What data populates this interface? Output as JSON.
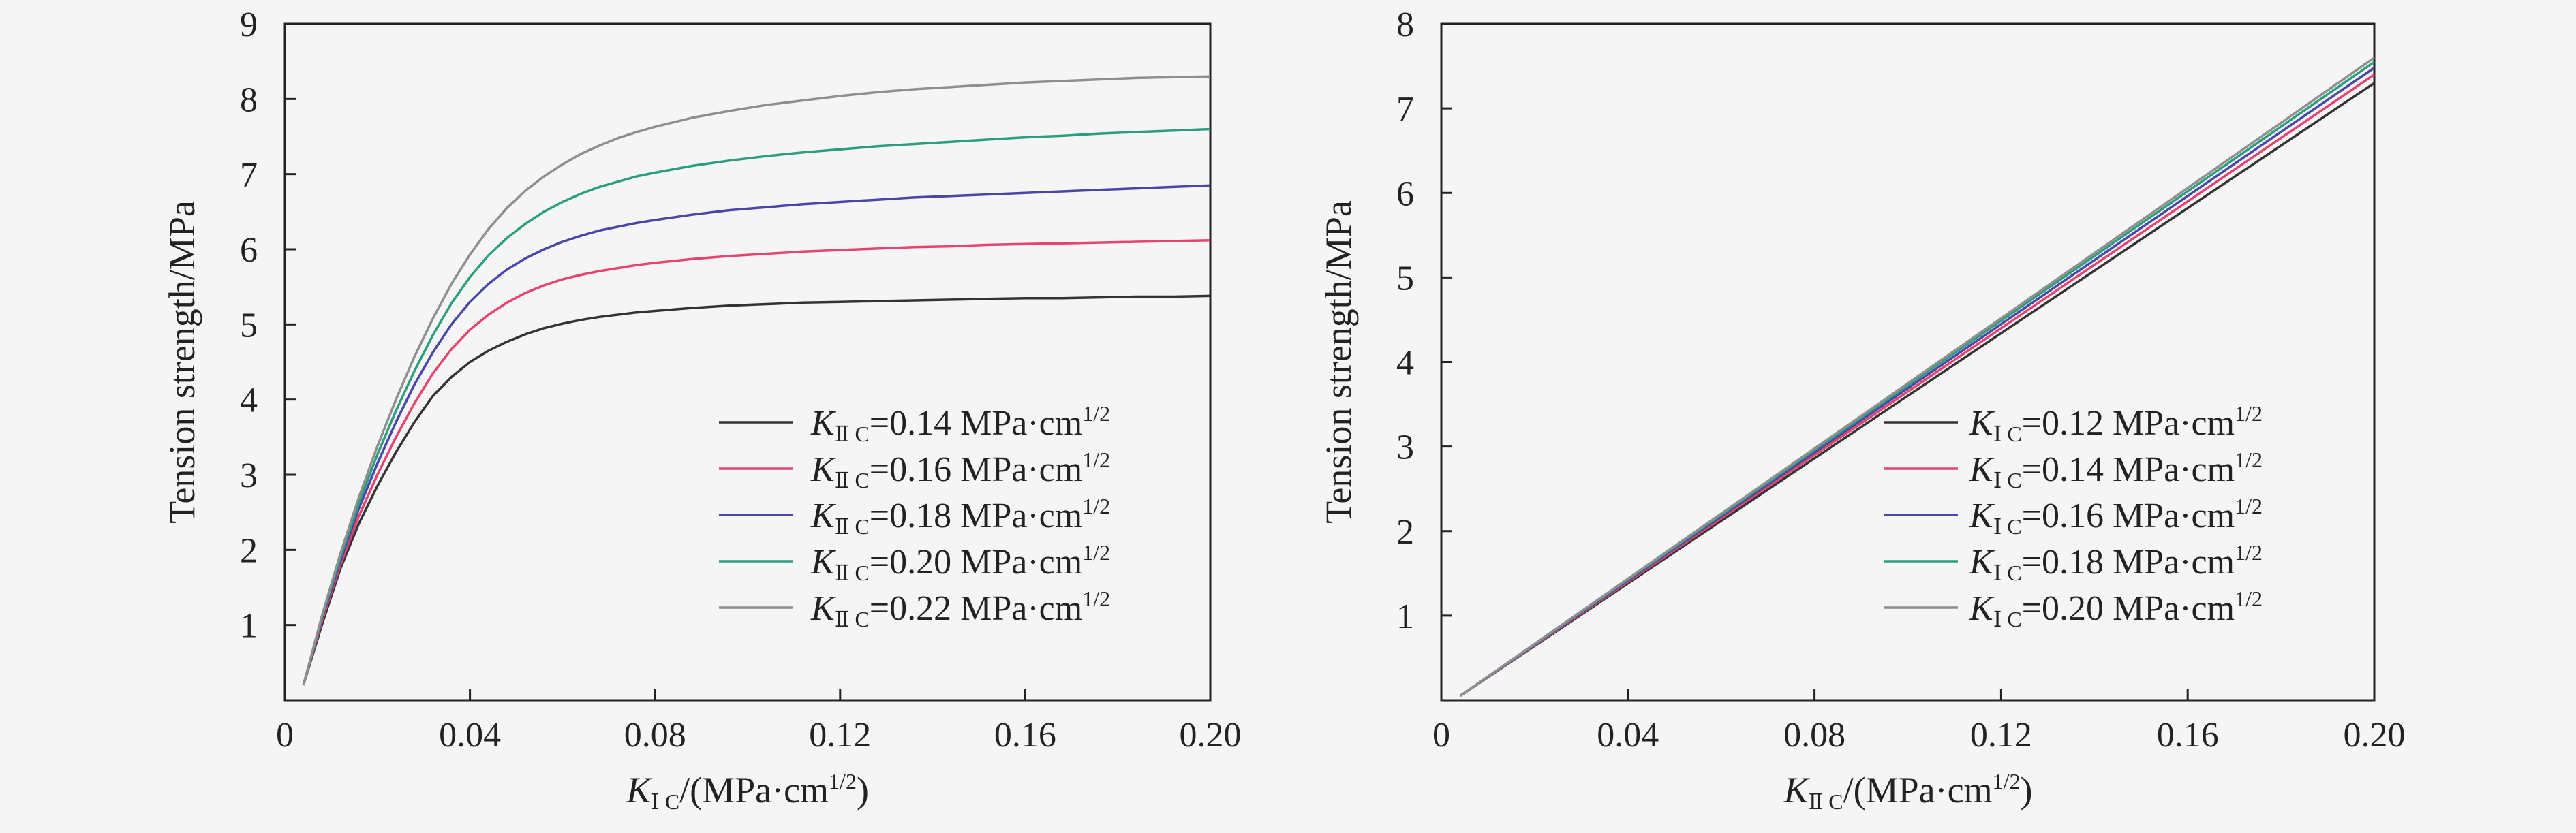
{
  "chart_data": [
    {
      "type": "line",
      "title": "",
      "xlabel": {
        "symbol": "K",
        "subscript": "Ⅰ C",
        "rest": "/(MPa·cm",
        "superscript": "1/2",
        "close": ")"
      },
      "ylabel": "Tension strength/MPa",
      "xlim": [
        0,
        0.2
      ],
      "ylim": [
        0,
        9
      ],
      "x_ticks": [
        0,
        0.04,
        0.08,
        0.12,
        0.16,
        0.2
      ],
      "x_tick_labels": [
        "0",
        "0.04",
        "0.08",
        "0.12",
        "0.16",
        "0.20"
      ],
      "y_ticks": [
        1,
        2,
        3,
        4,
        5,
        6,
        7,
        8,
        9
      ],
      "y_tick_labels": [
        "1",
        "2",
        "3",
        "4",
        "5",
        "6",
        "7",
        "8",
        "9"
      ],
      "grid": false,
      "legend_position": "bottom-right",
      "x": [
        0.004,
        0.008,
        0.012,
        0.016,
        0.02,
        0.024,
        0.028,
        0.032,
        0.036,
        0.04,
        0.044,
        0.048,
        0.052,
        0.056,
        0.06,
        0.064,
        0.068,
        0.072,
        0.076,
        0.08,
        0.088,
        0.096,
        0.104,
        0.112,
        0.12,
        0.128,
        0.136,
        0.144,
        0.152,
        0.16,
        0.168,
        0.176,
        0.184,
        0.192,
        0.2
      ],
      "series": [
        {
          "legend": {
            "symbol": "K",
            "subscript": "Ⅱ C",
            "value": "=0.14 MPa·cm",
            "superscript": "1/2"
          },
          "color": "#333333",
          "values": [
            0.2,
            1.0,
            1.75,
            2.35,
            2.85,
            3.3,
            3.7,
            4.05,
            4.3,
            4.5,
            4.65,
            4.77,
            4.87,
            4.95,
            5.01,
            5.06,
            5.1,
            5.13,
            5.16,
            5.18,
            5.22,
            5.25,
            5.27,
            5.29,
            5.3,
            5.31,
            5.32,
            5.33,
            5.34,
            5.35,
            5.35,
            5.36,
            5.37,
            5.37,
            5.38
          ]
        },
        {
          "legend": {
            "symbol": "K",
            "subscript": "Ⅱ C",
            "value": "=0.16 MPa·cm",
            "superscript": "1/2"
          },
          "color": "#e8426e",
          "values": [
            0.2,
            1.05,
            1.8,
            2.45,
            3.0,
            3.5,
            3.95,
            4.35,
            4.67,
            4.93,
            5.13,
            5.29,
            5.42,
            5.52,
            5.6,
            5.66,
            5.71,
            5.75,
            5.79,
            5.82,
            5.87,
            5.91,
            5.94,
            5.97,
            5.99,
            6.01,
            6.03,
            6.04,
            6.06,
            6.07,
            6.08,
            6.09,
            6.1,
            6.11,
            6.12
          ]
        },
        {
          "legend": {
            "symbol": "K",
            "subscript": "Ⅱ C",
            "value": "=0.18 MPa·cm",
            "superscript": "1/2"
          },
          "color": "#4a46a8",
          "values": [
            0.2,
            1.08,
            1.85,
            2.55,
            3.15,
            3.7,
            4.2,
            4.63,
            5.0,
            5.3,
            5.54,
            5.73,
            5.88,
            6.0,
            6.1,
            6.18,
            6.25,
            6.3,
            6.35,
            6.39,
            6.46,
            6.52,
            6.56,
            6.6,
            6.63,
            6.66,
            6.69,
            6.71,
            6.73,
            6.75,
            6.77,
            6.79,
            6.81,
            6.83,
            6.85
          ]
        },
        {
          "legend": {
            "symbol": "K",
            "subscript": "Ⅱ C",
            "value": "=0.20 MPa·cm",
            "superscript": "1/2"
          },
          "color": "#2a9e7e",
          "values": [
            0.2,
            1.1,
            1.9,
            2.62,
            3.27,
            3.85,
            4.38,
            4.86,
            5.28,
            5.63,
            5.92,
            6.15,
            6.34,
            6.5,
            6.63,
            6.74,
            6.83,
            6.9,
            6.97,
            7.02,
            7.11,
            7.18,
            7.24,
            7.29,
            7.33,
            7.37,
            7.4,
            7.43,
            7.46,
            7.49,
            7.51,
            7.54,
            7.56,
            7.58,
            7.6
          ]
        },
        {
          "legend": {
            "symbol": "K",
            "subscript": "Ⅱ C",
            "value": "=0.22 MPa·cm",
            "superscript": "1/2"
          },
          "color": "#8f8f8f",
          "values": [
            0.2,
            1.12,
            1.95,
            2.7,
            3.38,
            4.0,
            4.57,
            5.08,
            5.54,
            5.93,
            6.27,
            6.55,
            6.78,
            6.97,
            7.13,
            7.27,
            7.38,
            7.48,
            7.56,
            7.63,
            7.75,
            7.84,
            7.92,
            7.98,
            8.04,
            8.09,
            8.13,
            8.16,
            8.19,
            8.22,
            8.24,
            8.26,
            8.28,
            8.29,
            8.3
          ]
        }
      ]
    },
    {
      "type": "line",
      "title": "",
      "xlabel": {
        "symbol": "K",
        "subscript": "Ⅱ C",
        "rest": "/(MPa·cm",
        "superscript": "1/2",
        "close": ")"
      },
      "ylabel": "Tension strength/MPa",
      "xlim": [
        0,
        0.2
      ],
      "ylim": [
        0,
        8
      ],
      "x_ticks": [
        0,
        0.04,
        0.08,
        0.12,
        0.16,
        0.2
      ],
      "x_tick_labels": [
        "0",
        "0.04",
        "0.08",
        "0.12",
        "0.16",
        "0.20"
      ],
      "y_ticks": [
        1,
        2,
        3,
        4,
        5,
        6,
        7,
        8
      ],
      "y_tick_labels": [
        "1",
        "2",
        "3",
        "4",
        "5",
        "6",
        "7",
        "8"
      ],
      "grid": false,
      "legend_position": "bottom-right",
      "x": [
        0.004,
        0.2
      ],
      "series": [
        {
          "legend": {
            "symbol": "K",
            "subscript": "Ⅰ C",
            "value": "=0.12 MPa·cm",
            "superscript": "1/2"
          },
          "color": "#333333",
          "values": [
            0.05,
            7.3
          ]
        },
        {
          "legend": {
            "symbol": "K",
            "subscript": "Ⅰ C",
            "value": "=0.14 MPa·cm",
            "superscript": "1/2"
          },
          "color": "#e8426e",
          "values": [
            0.05,
            7.4
          ]
        },
        {
          "legend": {
            "symbol": "K",
            "subscript": "Ⅰ C",
            "value": "=0.16 MPa·cm",
            "superscript": "1/2"
          },
          "color": "#4a46a8",
          "values": [
            0.05,
            7.48
          ]
        },
        {
          "legend": {
            "symbol": "K",
            "subscript": "Ⅰ C",
            "value": "=0.18 MPa·cm",
            "superscript": "1/2"
          },
          "color": "#2a9e7e",
          "values": [
            0.05,
            7.55
          ]
        },
        {
          "legend": {
            "symbol": "K",
            "subscript": "Ⅰ C",
            "value": "=0.20 MPa·cm",
            "superscript": "1/2"
          },
          "color": "#8f8f8f",
          "values": [
            0.05,
            7.6
          ]
        }
      ]
    }
  ]
}
